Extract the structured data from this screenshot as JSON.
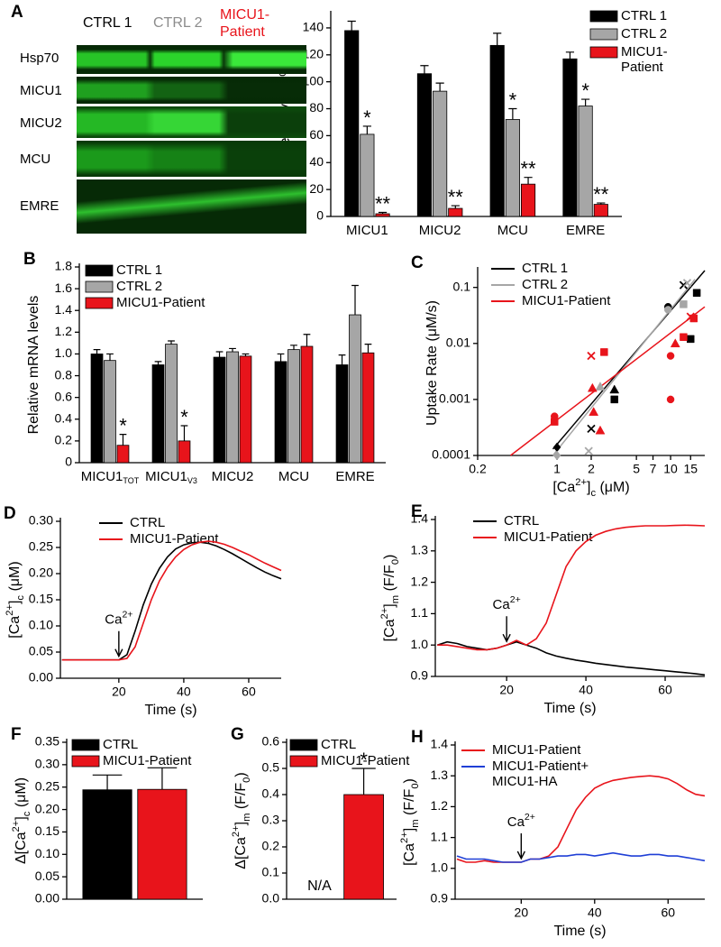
{
  "blot": {
    "columns": [
      "CTRL 1",
      "CTRL 2",
      "MICU1-Patient"
    ],
    "rows": [
      "Hsp70",
      "MICU1",
      "MICU2",
      "MCU",
      "EMRE"
    ]
  },
  "chart_data": [
    {
      "panel": "A",
      "type": "bar",
      "ylabel": [
        {
          "text": "Protein levels (%)"
        }
      ],
      "categories": [
        "MICU1",
        "MICU2",
        "MCU",
        "EMRE"
      ],
      "ylim": [
        0,
        150
      ],
      "yticks": [
        0,
        20,
        40,
        60,
        80,
        100,
        120,
        140
      ],
      "series": [
        {
          "name": "CTRL 1",
          "color": "#000000",
          "values": [
            138,
            106,
            127,
            117
          ],
          "errors": [
            7,
            6,
            9,
            5
          ]
        },
        {
          "name": "CTRL 2",
          "color": "#a6a6a6",
          "values": [
            61,
            93,
            72,
            82
          ],
          "errors": [
            6,
            6,
            8,
            5
          ],
          "significance": [
            "*",
            null,
            "*",
            "*"
          ]
        },
        {
          "name": "MICU1-Patient",
          "color": "#e8141b",
          "values": [
            2,
            6,
            24,
            9
          ],
          "errors": [
            1,
            2,
            5,
            1
          ],
          "significance": [
            "**",
            "**",
            "**",
            "**"
          ]
        }
      ]
    },
    {
      "panel": "B",
      "type": "bar",
      "ylabel": [
        {
          "text": "Relative mRNA levels"
        }
      ],
      "categories": [
        "MICU1",
        "MICU1",
        "MICU2",
        "MCU",
        "EMRE"
      ],
      "category_subscripts": [
        "TOT",
        "V3",
        null,
        null,
        null
      ],
      "ylim": [
        0,
        1.8
      ],
      "yticks": [
        0,
        0.2,
        0.4,
        0.6,
        0.8,
        {
          "value": 1,
          "label": "1.0"
        },
        1.2,
        1.4,
        1.6,
        1.8
      ],
      "series": [
        {
          "name": "CTRL 1",
          "color": "#000000",
          "values": [
            1.0,
            0.9,
            0.97,
            0.93,
            0.9
          ],
          "errors": [
            0.04,
            0.03,
            0.05,
            0.07,
            0.09
          ]
        },
        {
          "name": "CTRL 2",
          "color": "#a6a6a6",
          "values": [
            0.94,
            1.09,
            1.02,
            1.04,
            1.36
          ],
          "errors": [
            0.06,
            0.03,
            0.03,
            0.04,
            0.27
          ]
        },
        {
          "name": "MICU1-Patient",
          "color": "#e8141b",
          "values": [
            0.16,
            0.2,
            0.98,
            1.07,
            1.01
          ],
          "errors": [
            0.1,
            0.14,
            0.02,
            0.11,
            0.08
          ],
          "significance": [
            "*",
            "*",
            null,
            null,
            null
          ]
        }
      ]
    },
    {
      "panel": "C",
      "type": "scatter",
      "xscale": "log",
      "yscale": "log",
      "ylabel": [
        {
          "text": "Uptake Rate (μM/s)"
        }
      ],
      "xlabel": [
        {
          "text": "[Ca"
        },
        {
          "sup": "2+"
        },
        {
          "text": "]"
        },
        {
          "sub": "c"
        },
        {
          "text": " (μM)"
        }
      ],
      "xlim": [
        0.2,
        20
      ],
      "xticks": [
        0.2,
        1,
        2,
        5,
        7,
        10,
        15
      ],
      "ylim": [
        0.0001,
        0.2
      ],
      "yticks": [
        0.0001,
        0.001,
        0.01,
        0.1
      ],
      "series": [
        {
          "name": "CTRL 1",
          "color": "#000000",
          "x": [
            0.92,
            20
          ],
          "values": [
            0.00013,
            0.2
          ]
        },
        {
          "name": "CTRL 2",
          "color": "#a6a6a6",
          "x": [
            0.92,
            16.4
          ],
          "values": [
            0.0001,
            0.14
          ]
        },
        {
          "name": "MICU1-Patient",
          "color": "#e8141b",
          "x": [
            0.39,
            20
          ],
          "values": [
            0.0001,
            0.045
          ]
        }
      ],
      "points": [
        {
          "color": "#000000",
          "x": [
            1,
            2,
            3.2,
            3.2,
            9.5,
            17,
            15,
            13
          ],
          "values": [
            0.00014,
            0.0003,
            0.0015,
            0.001,
            0.045,
            0.08,
            0.012,
            0.11
          ],
          "markers": [
            "diamond",
            "cross",
            "triangle",
            "square",
            "circle",
            "square",
            "square",
            "cross"
          ]
        },
        {
          "color": "#a6a6a6",
          "x": [
            1,
            1.9,
            2.4,
            9.5,
            13,
            14
          ],
          "values": [
            0.0001,
            0.00012,
            0.0017,
            0.04,
            0.05,
            0.12
          ],
          "markers": [
            "diamond",
            "cross",
            "triangle",
            "circle",
            "square",
            "cross"
          ]
        },
        {
          "color": "#e8141b",
          "x": [
            0.95,
            0.95,
            2,
            2.6,
            2.1,
            2.4,
            2.05,
            10,
            10,
            11,
            13,
            15,
            16
          ],
          "values": [
            0.0004,
            0.0005,
            0.006,
            0.007,
            0.0006,
            0.00028,
            0.0016,
            0.006,
            0.001,
            0.01,
            0.013,
            0.03,
            0.028
          ],
          "markers": [
            "square",
            "circle",
            "cross",
            "square",
            "triangle",
            "triangle",
            "triangle",
            "circle",
            "circle",
            "triangle",
            "square",
            "cross",
            "square"
          ]
        }
      ]
    },
    {
      "panel": "D",
      "type": "line",
      "ylabel": [
        {
          "text": "[Ca"
        },
        {
          "sup": "2+"
        },
        {
          "text": "]"
        },
        {
          "sub": "c"
        },
        {
          "text": " (μM)"
        }
      ],
      "xlabel": [
        {
          "text": "Time (s)"
        }
      ],
      "xlim": [
        2,
        70
      ],
      "xticks": [
        20,
        40,
        60
      ],
      "ylim": [
        0,
        0.3
      ],
      "yticks": [
        {
          "value": 0,
          "label": "0.00"
        },
        0.05,
        {
          "value": 0.1,
          "label": "0.10"
        },
        0.15,
        {
          "value": 0.2,
          "label": "0.20"
        },
        0.25,
        {
          "value": 0.3,
          "label": "0.30"
        }
      ],
      "x": [
        2.5,
        5,
        7.5,
        10,
        12.5,
        15,
        17.5,
        20,
        22.5,
        25,
        27.5,
        30,
        32.5,
        35,
        37.5,
        40,
        42.5,
        45,
        47.5,
        50,
        52.5,
        55,
        57.5,
        60,
        62.5,
        65,
        67.5,
        70
      ],
      "annotation": {
        "label": [
          {
            "text": "Ca"
          },
          {
            "sup": "2+"
          }
        ],
        "x": 20
      },
      "series": [
        {
          "name": "CTRL",
          "color": "#000000",
          "values": [
            0.035,
            0.035,
            0.035,
            0.035,
            0.035,
            0.035,
            0.035,
            0.035,
            0.045,
            0.09,
            0.14,
            0.18,
            0.21,
            0.232,
            0.247,
            0.255,
            0.259,
            0.26,
            0.258,
            0.253,
            0.246,
            0.238,
            0.229,
            0.22,
            0.211,
            0.203,
            0.196,
            0.19
          ]
        },
        {
          "name": "MICU1-Patient",
          "color": "#e8141b",
          "values": [
            0.035,
            0.035,
            0.035,
            0.035,
            0.035,
            0.035,
            0.035,
            0.035,
            0.038,
            0.06,
            0.105,
            0.15,
            0.186,
            0.212,
            0.232,
            0.246,
            0.255,
            0.26,
            0.262,
            0.26,
            0.256,
            0.25,
            0.243,
            0.236,
            0.228,
            0.22,
            0.213,
            0.206
          ]
        }
      ]
    },
    {
      "panel": "E",
      "type": "line",
      "ylabel": [
        {
          "text": "[Ca"
        },
        {
          "sup": "2+"
        },
        {
          "text": "]"
        },
        {
          "sub": "m"
        },
        {
          "text": " (F/F"
        },
        {
          "sub": "0"
        },
        {
          "text": ")"
        }
      ],
      "xlabel": [
        {
          "text": "Time (s)"
        }
      ],
      "xlim": [
        2,
        70
      ],
      "xticks": [
        20,
        40,
        60
      ],
      "ylim": [
        0.9,
        1.4
      ],
      "yticks": [
        0.9,
        {
          "value": 1,
          "label": "1.0"
        },
        1.1,
        1.2,
        1.3,
        1.4
      ],
      "x": [
        2.5,
        5,
        7.5,
        10,
        12.5,
        15,
        17.5,
        20,
        22.5,
        25,
        27.5,
        30,
        32.5,
        35,
        37.5,
        40,
        42.5,
        45,
        47.5,
        50,
        52.5,
        55,
        57.5,
        60,
        62.5,
        65,
        67.5,
        70
      ],
      "annotation": {
        "label": [
          {
            "text": "Ca"
          },
          {
            "sup": "2+"
          }
        ],
        "x": 20
      },
      "series": [
        {
          "name": "CTRL",
          "color": "#000000",
          "values": [
            1.0,
            1.01,
            1.005,
            0.995,
            0.99,
            0.985,
            0.99,
            1.0,
            1.01,
            1.0,
            0.99,
            0.975,
            0.965,
            0.958,
            0.952,
            0.947,
            0.942,
            0.938,
            0.934,
            0.93,
            0.927,
            0.924,
            0.921,
            0.918,
            0.915,
            0.912,
            0.909,
            0.905
          ]
        },
        {
          "name": "MICU1-Patient",
          "color": "#e8141b",
          "values": [
            1.0,
            1.0,
            0.995,
            0.99,
            0.985,
            0.985,
            0.99,
            1.0,
            1.015,
            1.0,
            1.02,
            1.07,
            1.16,
            1.25,
            1.3,
            1.33,
            1.35,
            1.362,
            1.37,
            1.375,
            1.378,
            1.38,
            1.38,
            1.38,
            1.381,
            1.382,
            1.381,
            1.38
          ]
        }
      ]
    },
    {
      "panel": "F",
      "type": "bar",
      "ylabel": [
        {
          "text": "Δ[Ca"
        },
        {
          "sup": "2+"
        },
        {
          "text": "]"
        },
        {
          "sub": "c"
        },
        {
          "text": " (μM)"
        }
      ],
      "categories": [
        null
      ],
      "ylim": [
        0,
        0.35
      ],
      "yticks": [
        {
          "value": 0,
          "label": "0.00"
        },
        0.05,
        {
          "value": 0.1,
          "label": "0.10"
        },
        0.15,
        {
          "value": 0.2,
          "label": "0.20"
        },
        0.25,
        {
          "value": 0.3,
          "label": "0.30"
        },
        0.35
      ],
      "series": [
        {
          "name": "CTRL",
          "color": "#000000",
          "values": [
            0.244
          ],
          "errors": [
            0.033
          ]
        },
        {
          "name": "MICU1-Patient",
          "color": "#e8141b",
          "values": [
            0.245
          ],
          "errors": [
            0.048
          ]
        }
      ]
    },
    {
      "panel": "G",
      "type": "bar",
      "ylabel": [
        {
          "text": "Δ[Ca"
        },
        {
          "sup": "2+"
        },
        {
          "text": "]"
        },
        {
          "sub": "m"
        },
        {
          "text": " (F/F"
        },
        {
          "sub": "0"
        },
        {
          "text": ")"
        }
      ],
      "categories": [
        null
      ],
      "ylim": [
        0,
        0.6
      ],
      "yticks": [
        {
          "value": 0,
          "label": "0.0"
        },
        0.1,
        0.2,
        0.3,
        0.4,
        0.5,
        0.6
      ],
      "series": [
        {
          "name": "CTRL",
          "color": "#000000",
          "values": [
            null
          ],
          "value_labels": [
            "N/A"
          ]
        },
        {
          "name": "MICU1-Patient",
          "color": "#e8141b",
          "values": [
            0.4
          ],
          "errors": [
            0.1
          ],
          "significance": [
            "*"
          ]
        }
      ]
    },
    {
      "panel": "H",
      "type": "line",
      "ylabel": [
        {
          "text": "[Ca"
        },
        {
          "sup": "2+"
        },
        {
          "text": "]"
        },
        {
          "sub": "m"
        },
        {
          "text": " (F/F"
        },
        {
          "sub": "0"
        },
        {
          "text": ")"
        }
      ],
      "xlabel": [
        {
          "text": "Time (s)"
        }
      ],
      "xlim": [
        2,
        70
      ],
      "xticks": [
        20,
        40,
        60
      ],
      "ylim": [
        0.9,
        1.4
      ],
      "yticks": [
        0.9,
        {
          "value": 1,
          "label": "1.0"
        },
        1.1,
        1.2,
        1.3,
        1.4
      ],
      "x": [
        2.5,
        5,
        7.5,
        10,
        12.5,
        15,
        17.5,
        20,
        22.5,
        25,
        27.5,
        30,
        32.5,
        35,
        37.5,
        40,
        42.5,
        45,
        47.5,
        50,
        52.5,
        55,
        57.5,
        60,
        62.5,
        65,
        67.5,
        70
      ],
      "annotation": {
        "label": [
          {
            "text": "Ca"
          },
          {
            "sup": "2+"
          }
        ],
        "x": 20
      },
      "series": [
        {
          "name": "MICU1-Patient",
          "color": "#e8141b",
          "values": [
            1.03,
            1.02,
            1.02,
            1.025,
            1.02,
            1.02,
            1.02,
            1.02,
            1.03,
            1.03,
            1.04,
            1.07,
            1.13,
            1.19,
            1.23,
            1.26,
            1.275,
            1.285,
            1.29,
            1.295,
            1.298,
            1.3,
            1.297,
            1.29,
            1.275,
            1.255,
            1.24,
            1.235
          ]
        },
        {
          "name": "MICU1-Patient+ MICU1-HA",
          "color": "#1f3fd6",
          "values": [
            1.04,
            1.03,
            1.03,
            1.03,
            1.025,
            1.02,
            1.02,
            1.02,
            1.03,
            1.03,
            1.035,
            1.04,
            1.04,
            1.045,
            1.045,
            1.04,
            1.045,
            1.05,
            1.045,
            1.04,
            1.04,
            1.045,
            1.045,
            1.04,
            1.04,
            1.035,
            1.03,
            1.025
          ]
        }
      ]
    }
  ]
}
